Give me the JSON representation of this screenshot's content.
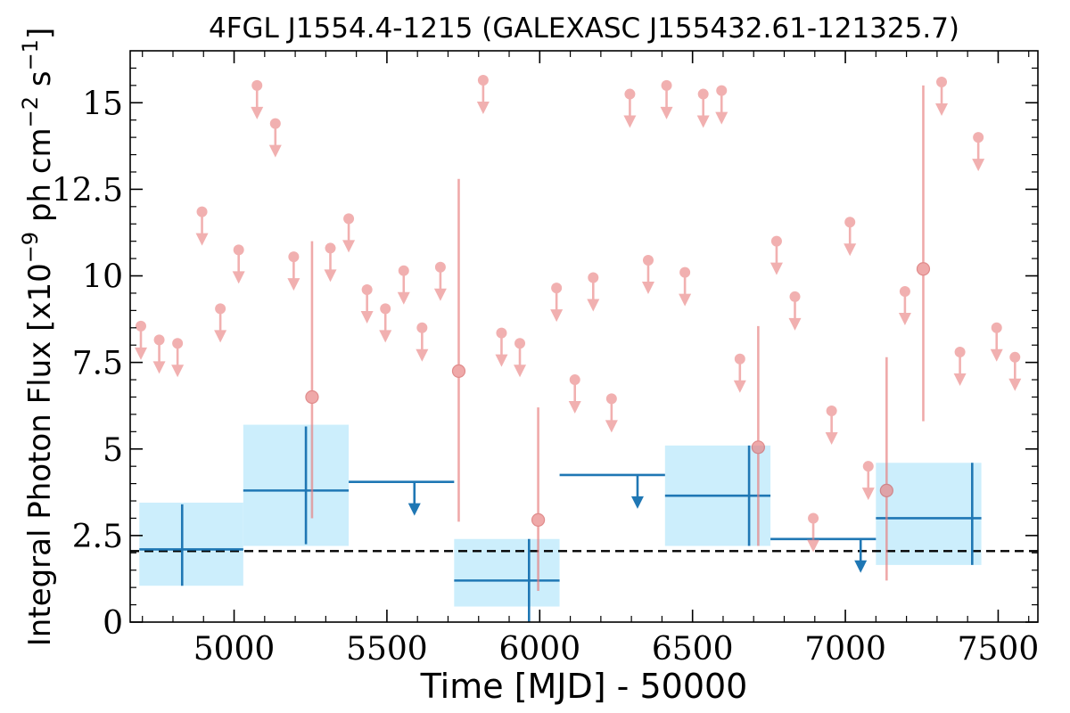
{
  "chart_data": {
    "type": "scatter",
    "title": "4FGL J1554.4-1215 (GALEXASC J155432.61-121325.7)",
    "xlabel": "Time [MJD] - 50000",
    "ylabel": "Integral Photon Flux [x10",
    "ylabel_exponent": "−9",
    "ylabel_mid": " ph cm",
    "ylabel_exponent2": "−2",
    "ylabel_end": " s",
    "ylabel_exponent3": "−1",
    "ylabel_close": "]",
    "xlim": [
      4660,
      7630
    ],
    "ylim": [
      0,
      16.5
    ],
    "x_ticks": [
      5000,
      5500,
      6000,
      6500,
      7000,
      7500
    ],
    "x_tick_labels": [
      "5000",
      "5500",
      "6000",
      "6500",
      "7000",
      "7500"
    ],
    "y_ticks": [
      0,
      2.5,
      5,
      7.5,
      10,
      12.5,
      15
    ],
    "y_tick_labels": [
      "0",
      "2.5",
      "5",
      "7.5",
      "10",
      "12.5",
      "15"
    ],
    "grid": false,
    "reference_line": {
      "y": 2.05,
      "style": "dashed",
      "color": "#000000"
    },
    "colors": {
      "short_bins": "#e87c7c",
      "long_bins": "#1f77b4",
      "long_band": "#cceefc"
    },
    "short_bin_upper_limits": [
      [
        4695,
        8.55
      ],
      [
        4755,
        8.15
      ],
      [
        4815,
        8.05
      ],
      [
        4895,
        11.85
      ],
      [
        4955,
        9.05
      ],
      [
        5015,
        10.75
      ],
      [
        5075,
        15.5
      ],
      [
        5135,
        14.4
      ],
      [
        5195,
        10.55
      ],
      [
        5315,
        10.8
      ],
      [
        5375,
        11.65
      ],
      [
        5435,
        9.6
      ],
      [
        5495,
        9.05
      ],
      [
        5555,
        10.15
      ],
      [
        5615,
        8.5
      ],
      [
        5675,
        10.25
      ],
      [
        5815,
        15.65
      ],
      [
        5875,
        8.35
      ],
      [
        5935,
        8.05
      ],
      [
        6055,
        9.65
      ],
      [
        6115,
        7.0
      ],
      [
        6175,
        9.95
      ],
      [
        6235,
        6.45
      ],
      [
        6295,
        15.25
      ],
      [
        6355,
        10.45
      ],
      [
        6415,
        15.5
      ],
      [
        6475,
        10.1
      ],
      [
        6535,
        15.25
      ],
      [
        6595,
        15.35
      ],
      [
        6655,
        7.6
      ],
      [
        6775,
        11.0
      ],
      [
        6835,
        9.4
      ],
      [
        6895,
        3.0
      ],
      [
        6955,
        6.1
      ],
      [
        7015,
        11.55
      ],
      [
        7075,
        4.5
      ],
      [
        7195,
        9.55
      ],
      [
        7315,
        15.6
      ],
      [
        7375,
        7.8
      ],
      [
        7435,
        14.0
      ],
      [
        7495,
        8.5
      ],
      [
        7555,
        7.65
      ]
    ],
    "short_bin_detections": [
      {
        "x": 5255,
        "y": 6.5,
        "ylo": 3.0,
        "yhi": 11.0
      },
      {
        "x": 5735,
        "y": 7.25,
        "ylo": 2.9,
        "yhi": 12.8
      },
      {
        "x": 5995,
        "y": 2.95,
        "ylo": 0.9,
        "yhi": 6.2
      },
      {
        "x": 6715,
        "y": 5.05,
        "ylo": 2.2,
        "yhi": 8.55
      },
      {
        "x": 7135,
        "y": 3.8,
        "ylo": 1.2,
        "yhi": 7.65
      },
      {
        "x": 7255,
        "y": 10.2,
        "ylo": 5.8,
        "yhi": 15.5
      }
    ],
    "long_bin_detections": [
      {
        "x0": 4690,
        "x1": 5030,
        "x": 4830,
        "y": 2.1,
        "ylo": 1.05,
        "yhi": 3.4,
        "band_lo": 1.05,
        "band_hi": 3.45
      },
      {
        "x0": 5030,
        "x1": 5375,
        "x": 5235,
        "y": 3.8,
        "ylo": 2.25,
        "yhi": 5.65,
        "band_lo": 2.2,
        "band_hi": 5.7
      },
      {
        "x0": 5720,
        "x1": 6065,
        "x": 5965,
        "y": 1.2,
        "ylo": 0.0,
        "yhi": 2.4,
        "band_lo": 0.45,
        "band_hi": 2.4
      },
      {
        "x0": 6410,
        "x1": 6755,
        "x": 6685,
        "y": 3.65,
        "ylo": 2.2,
        "yhi": 5.1,
        "band_lo": 2.2,
        "band_hi": 5.1
      },
      {
        "x0": 7100,
        "x1": 7445,
        "x": 7415,
        "y": 3.0,
        "ylo": 1.65,
        "yhi": 4.6,
        "band_lo": 1.65,
        "band_hi": 4.6
      }
    ],
    "long_bin_upper_limits": [
      {
        "x0": 5375,
        "x1": 5720,
        "x": 5590,
        "y": 4.05
      },
      {
        "x0": 6065,
        "x1": 6410,
        "x": 6320,
        "y": 4.25
      },
      {
        "x0": 6755,
        "x1": 7100,
        "x": 7050,
        "y": 2.4
      }
    ]
  }
}
